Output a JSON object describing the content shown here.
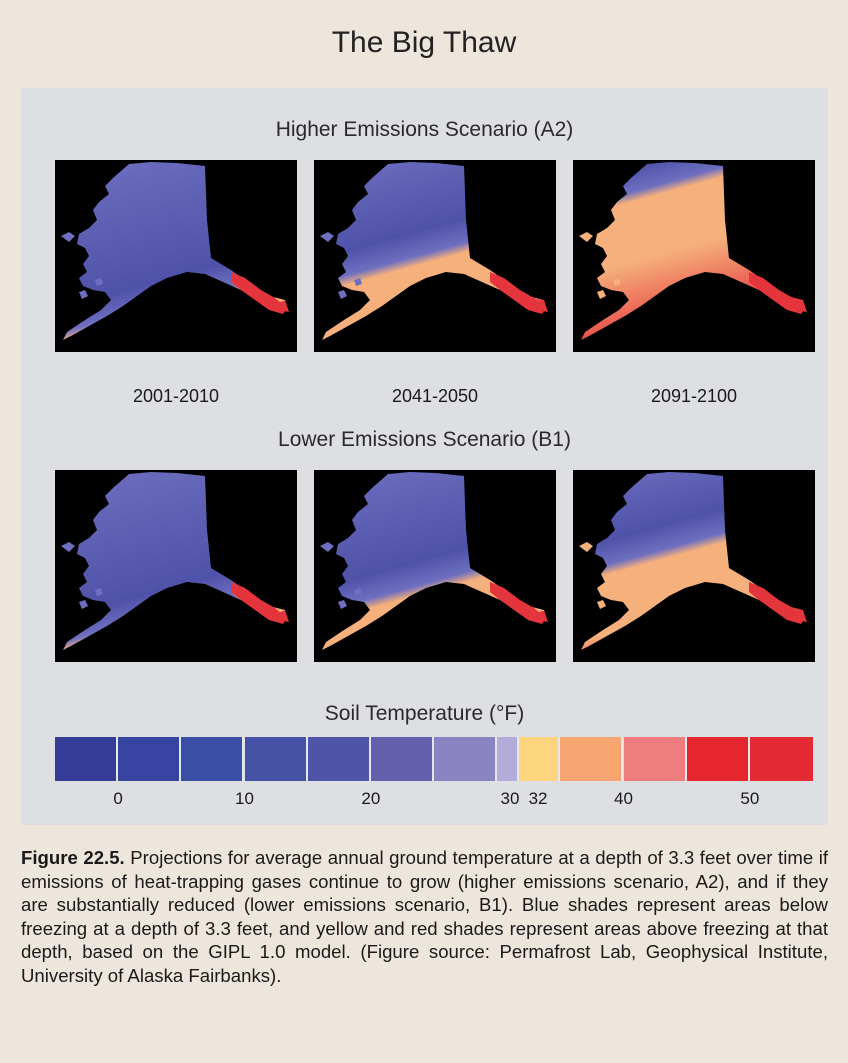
{
  "title": "The Big Thaw",
  "figure": {
    "scenarios": [
      {
        "heading": "Higher Emissions Scenario (A2)",
        "maps": [
          {
            "period": "2001-2010",
            "warm_share": 0.15
          },
          {
            "period": "2041-2050",
            "warm_share": 0.4
          },
          {
            "period": "2091-2100",
            "warm_share": 0.78
          }
        ],
        "show_period_labels": true
      },
      {
        "heading": "Lower Emissions Scenario (B1)",
        "maps": [
          {
            "period": "2001-2010",
            "warm_share": 0.15
          },
          {
            "period": "2041-2050",
            "warm_share": 0.3
          },
          {
            "period": "2091-2100",
            "warm_share": 0.5
          }
        ],
        "show_period_labels": false
      }
    ],
    "legend": {
      "title": "Soil Temperature (°F)",
      "swatches": [
        {
          "color": "#333d96",
          "weight": 1
        },
        {
          "color": "#3745a0",
          "weight": 1
        },
        {
          "color": "#3a4ea6",
          "weight": 1
        },
        {
          "color": "#4652a6",
          "weight": 1
        },
        {
          "color": "#4e55a8",
          "weight": 1
        },
        {
          "color": "#6560ad",
          "weight": 1
        },
        {
          "color": "#8a84c2",
          "weight": 1
        },
        {
          "color": "#b3acd9",
          "weight": 0.35
        },
        {
          "color": "#fdd57e",
          "weight": 0.65
        },
        {
          "color": "#f7a672",
          "weight": 1
        },
        {
          "color": "#ef7d80",
          "weight": 1
        },
        {
          "color": "#e6262d",
          "weight": 1
        },
        {
          "color": "#e42a33",
          "weight": 1
        }
      ],
      "ticks": [
        {
          "label": "0",
          "boundary": 1
        },
        {
          "label": "10",
          "boundary": 3
        },
        {
          "label": "20",
          "boundary": 5
        },
        {
          "label": "30",
          "boundary": 7.25
        },
        {
          "label": "32",
          "boundary": 7.6
        },
        {
          "label": "40",
          "boundary": 9
        },
        {
          "label": "50",
          "boundary": 11
        }
      ]
    }
  },
  "caption": {
    "label": "Figure 22.5.",
    "text": " Projections for average annual ground temperature at a depth of 3.3 feet over time if emissions of heat-trapping gases continue to grow (higher emissions scenario, A2), and if they are substantially reduced (lower emissions scenario, B1). Blue shades represent areas below freezing at a depth of 3.3 feet, and yellow and red shades represent areas above freezing at that depth, based on the GIPL 1.0 model. (Figure source: Permafrost Lab, Geophysical Institute, University of Alaska Fairbanks)."
  },
  "colors": {
    "cold": "#6e6fc0",
    "cold_dark": "#4f52a9",
    "warm": "#f5b07c",
    "hot": "#e4343c",
    "map_background": "#000000"
  }
}
